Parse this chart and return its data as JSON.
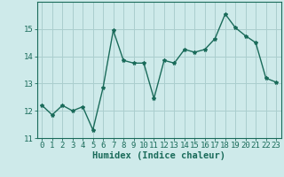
{
  "x": [
    0,
    1,
    2,
    3,
    4,
    5,
    6,
    7,
    8,
    9,
    10,
    11,
    12,
    13,
    14,
    15,
    16,
    17,
    18,
    19,
    20,
    21,
    22,
    23
  ],
  "y": [
    12.2,
    11.85,
    12.2,
    12.0,
    12.15,
    11.3,
    12.85,
    14.95,
    13.85,
    13.75,
    13.75,
    12.45,
    13.85,
    13.75,
    14.25,
    14.15,
    14.25,
    14.65,
    15.55,
    15.05,
    14.75,
    14.5,
    13.2,
    13.05
  ],
  "line_color": "#1a6b5a",
  "marker": "*",
  "marker_size": 3,
  "background_color": "#ceeaea",
  "grid_color": "#aacece",
  "xlabel": "Humidex (Indice chaleur)",
  "ylim": [
    11,
    16
  ],
  "xlim": [
    -0.5,
    23.5
  ],
  "yticks": [
    11,
    12,
    13,
    14,
    15
  ],
  "xticks": [
    0,
    1,
    2,
    3,
    4,
    5,
    6,
    7,
    8,
    9,
    10,
    11,
    12,
    13,
    14,
    15,
    16,
    17,
    18,
    19,
    20,
    21,
    22,
    23
  ],
  "xlabel_fontsize": 7.5,
  "tick_fontsize": 6.5,
  "line_width": 1.0
}
